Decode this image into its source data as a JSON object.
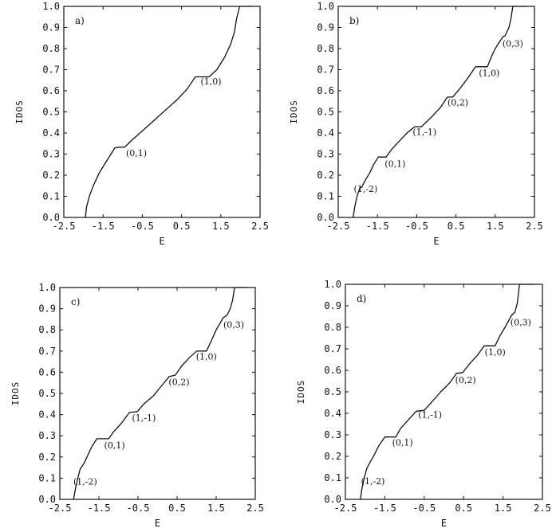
{
  "chart_data": [
    {
      "type": "line",
      "panel_label": "a)",
      "xlabel": "E",
      "ylabel": "IDOS",
      "xlim": [
        -2.5,
        2.5
      ],
      "ylim": [
        0.0,
        1.0
      ],
      "xticks": [
        "-2.5",
        "-1.5",
        "-0.5",
        "0.5",
        "1.5",
        "2.5"
      ],
      "yticks": [
        "0.0",
        "0.1",
        "0.2",
        "0.3",
        "0.4",
        "0.5",
        "0.6",
        "0.7",
        "0.8",
        "0.9",
        "1.0"
      ],
      "x": [
        -1.95,
        -1.92,
        -1.85,
        -1.75,
        -1.6,
        -1.4,
        -1.2,
        -1.1,
        -0.95,
        -0.8,
        -0.5,
        -0.2,
        0.1,
        0.4,
        0.65,
        0.85,
        1.2,
        1.4,
        1.6,
        1.75,
        1.85,
        1.9,
        1.98,
        2.3
      ],
      "y": [
        0.0,
        0.05,
        0.1,
        0.15,
        0.21,
        0.27,
        0.33,
        0.333,
        0.333,
        0.36,
        0.41,
        0.46,
        0.51,
        0.56,
        0.61,
        0.666,
        0.666,
        0.7,
        0.76,
        0.82,
        0.88,
        0.94,
        1.0,
        1.0
      ],
      "annotations": [
        {
          "text": "(0,1)",
          "x": -0.65,
          "y": 0.29
        },
        {
          "text": "(1,0)",
          "x": 1.25,
          "y": 0.63
        }
      ]
    },
    {
      "type": "line",
      "panel_label": "b)",
      "xlabel": "E",
      "ylabel": "IDOS",
      "xlim": [
        -2.5,
        2.5
      ],
      "ylim": [
        0.0,
        1.0
      ],
      "xticks": [
        "-2.5",
        "-1.5",
        "-0.5",
        "0.5",
        "1.5",
        "2.5"
      ],
      "yticks": [
        "0.0",
        "0.1",
        "0.2",
        "0.3",
        "0.4",
        "0.5",
        "0.6",
        "0.7",
        "0.8",
        "0.9",
        "1.0"
      ],
      "x": [
        -2.12,
        -2.08,
        -2.02,
        -1.95,
        -1.9,
        -1.8,
        -1.7,
        -1.6,
        -1.48,
        -1.28,
        -1.15,
        -0.95,
        -0.75,
        -0.55,
        -0.38,
        -0.1,
        0.1,
        0.28,
        0.42,
        0.6,
        0.8,
        1.0,
        1.3,
        1.4,
        1.5,
        1.7,
        1.75,
        1.85,
        1.9,
        1.95,
        2.3
      ],
      "y": [
        0.0,
        0.05,
        0.1,
        0.14,
        0.143,
        0.18,
        0.21,
        0.25,
        0.286,
        0.286,
        0.32,
        0.36,
        0.4,
        0.43,
        0.43,
        0.48,
        0.52,
        0.57,
        0.571,
        0.61,
        0.66,
        0.714,
        0.714,
        0.76,
        0.8,
        0.857,
        0.86,
        0.9,
        0.94,
        1.0,
        1.0
      ],
      "annotations": [
        {
          "text": "(1,-2)",
          "x": -1.8,
          "y": 0.12
        },
        {
          "text": "(0,1)",
          "x": -1.05,
          "y": 0.24
        },
        {
          "text": "(1,-1)",
          "x": -0.3,
          "y": 0.39
        },
        {
          "text": "(0,2)",
          "x": 0.55,
          "y": 0.53
        },
        {
          "text": "(1,0)",
          "x": 1.35,
          "y": 0.67
        },
        {
          "text": "(0,3)",
          "x": 1.95,
          "y": 0.81
        }
      ]
    },
    {
      "type": "line",
      "panel_label": "c)",
      "xlabel": "E",
      "ylabel": "IDOS",
      "xlim": [
        -2.5,
        2.5
      ],
      "ylim": [
        0.0,
        1.0
      ],
      "xticks": [
        "-2.5",
        "-1.5",
        "-0.5",
        "0.5",
        "1.5",
        "2.5"
      ],
      "yticks": [
        "0.0",
        "0.1",
        "0.2",
        "0.3",
        "0.4",
        "0.5",
        "0.6",
        "0.7",
        "0.8",
        "0.9",
        "1.0"
      ],
      "x": [
        -2.15,
        -2.1,
        -2.04,
        -1.98,
        -1.88,
        -1.78,
        -1.68,
        -1.55,
        -1.25,
        -1.12,
        -0.92,
        -0.72,
        -0.52,
        -0.35,
        -0.1,
        0.12,
        0.3,
        0.45,
        0.62,
        0.82,
        1.0,
        1.25,
        1.38,
        1.5,
        1.68,
        1.78,
        1.86,
        1.92,
        1.97,
        2.3
      ],
      "y": [
        0.0,
        0.05,
        0.1,
        0.143,
        0.17,
        0.21,
        0.25,
        0.286,
        0.286,
        0.32,
        0.36,
        0.41,
        0.414,
        0.45,
        0.49,
        0.54,
        0.58,
        0.586,
        0.63,
        0.67,
        0.7,
        0.7,
        0.75,
        0.8,
        0.857,
        0.87,
        0.9,
        0.94,
        1.0,
        1.0
      ],
      "annotations": [
        {
          "text": "(1,-2)",
          "x": -1.85,
          "y": 0.07
        },
        {
          "text": "(0,1)",
          "x": -1.1,
          "y": 0.24
        },
        {
          "text": "(1,-1)",
          "x": -0.35,
          "y": 0.37
        },
        {
          "text": "(0,2)",
          "x": 0.55,
          "y": 0.54
        },
        {
          "text": "(1,0)",
          "x": 1.25,
          "y": 0.66
        },
        {
          "text": "(0,3)",
          "x": 1.95,
          "y": 0.81
        }
      ]
    },
    {
      "type": "line",
      "panel_label": "d)",
      "xlabel": "E",
      "ylabel": "IDOS",
      "xlim": [
        -2.5,
        2.5
      ],
      "ylim": [
        0.0,
        1.0
      ],
      "xticks": [
        "-2.5",
        "-1.5",
        "-0.5",
        "0.5",
        "1.5",
        "2.5"
      ],
      "yticks": [
        "0.0",
        "0.1",
        "0.2",
        "0.3",
        "0.4",
        "0.5",
        "0.6",
        "0.7",
        "0.8",
        "0.9",
        "1.0"
      ],
      "x": [
        -2.12,
        -2.08,
        -2.02,
        -1.96,
        -1.88,
        -1.76,
        -1.65,
        -1.5,
        -1.22,
        -1.1,
        -0.9,
        -0.7,
        -0.5,
        -0.32,
        -0.08,
        0.14,
        0.32,
        0.48,
        0.65,
        0.85,
        1.02,
        1.3,
        1.42,
        1.55,
        1.72,
        1.8,
        1.86,
        1.92,
        2.3
      ],
      "y": [
        0.0,
        0.05,
        0.1,
        0.143,
        0.17,
        0.21,
        0.25,
        0.29,
        0.29,
        0.33,
        0.37,
        0.41,
        0.414,
        0.45,
        0.5,
        0.54,
        0.586,
        0.59,
        0.63,
        0.67,
        0.714,
        0.714,
        0.76,
        0.8,
        0.857,
        0.87,
        0.91,
        1.0,
        1.0
      ],
      "annotations": [
        {
          "text": "(1,-2)",
          "x": -1.8,
          "y": 0.07
        },
        {
          "text": "(0,1)",
          "x": -1.05,
          "y": 0.25
        },
        {
          "text": "(1,-1)",
          "x": -0.35,
          "y": 0.38
        },
        {
          "text": "(0,2)",
          "x": 0.55,
          "y": 0.54
        },
        {
          "text": "(1,0)",
          "x": 1.3,
          "y": 0.67
        },
        {
          "text": "(0,3)",
          "x": 1.95,
          "y": 0.81
        }
      ]
    }
  ]
}
